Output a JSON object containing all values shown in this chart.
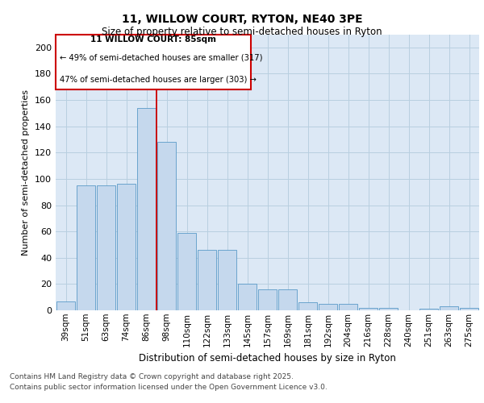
{
  "title_line1": "11, WILLOW COURT, RYTON, NE40 3PE",
  "title_line2": "Size of property relative to semi-detached houses in Ryton",
  "xlabel": "Distribution of semi-detached houses by size in Ryton",
  "ylabel": "Number of semi-detached properties",
  "categories": [
    "39sqm",
    "51sqm",
    "63sqm",
    "74sqm",
    "86sqm",
    "98sqm",
    "110sqm",
    "122sqm",
    "133sqm",
    "145sqm",
    "157sqm",
    "169sqm",
    "181sqm",
    "192sqm",
    "204sqm",
    "216sqm",
    "228sqm",
    "240sqm",
    "251sqm",
    "263sqm",
    "275sqm"
  ],
  "values": [
    7,
    95,
    95,
    96,
    154,
    128,
    59,
    46,
    46,
    20,
    16,
    16,
    6,
    5,
    5,
    2,
    2,
    0,
    1,
    3,
    2
  ],
  "bar_color": "#c5d8ed",
  "bar_edge_color": "#5a9ac8",
  "grid_color": "#b8cfe0",
  "background_color": "#dce8f5",
  "annotation_line_color": "#cc0000",
  "annotation_box_color": "#cc0000",
  "property_label": "11 WILLOW COURT: 85sqm",
  "smaller_pct": 49,
  "smaller_count": 317,
  "larger_pct": 47,
  "larger_count": 303,
  "vline_x": 4.5,
  "ylim": [
    0,
    210
  ],
  "yticks": [
    0,
    20,
    40,
    60,
    80,
    100,
    120,
    140,
    160,
    180,
    200
  ],
  "footer_line1": "Contains HM Land Registry data © Crown copyright and database right 2025.",
  "footer_line2": "Contains public sector information licensed under the Open Government Licence v3.0."
}
